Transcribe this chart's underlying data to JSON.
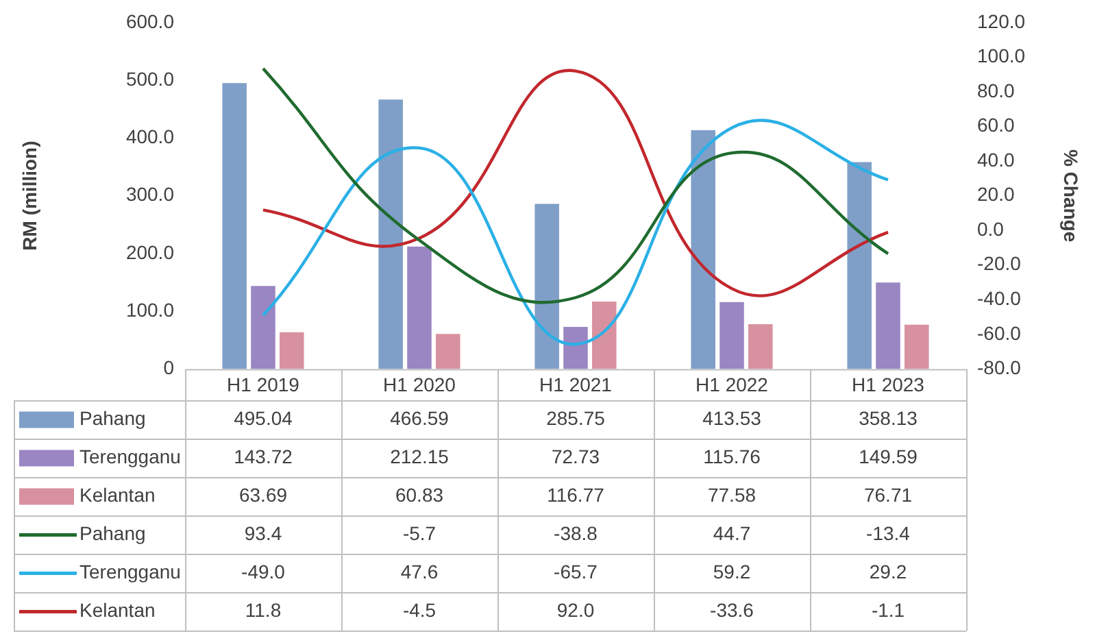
{
  "chart_data": {
    "type": "bar",
    "ylabel": "RM (million)",
    "y2label": "% Change",
    "categories": [
      "H1 2019",
      "H1 2020",
      "H1 2021",
      "H1 2022",
      "H1 2023"
    ],
    "ylim": [
      0,
      600
    ],
    "yticks": [
      {
        "value": 0,
        "label": "0"
      },
      {
        "value": 100,
        "label": "100.0"
      },
      {
        "value": 200,
        "label": "200.0"
      },
      {
        "value": 300,
        "label": "300.0"
      },
      {
        "value": 400,
        "label": "400.0"
      },
      {
        "value": 500,
        "label": "500.0"
      },
      {
        "value": 600,
        "label": "600.0"
      }
    ],
    "y2lim": [
      -80,
      120
    ],
    "y2ticks": [
      {
        "value": -80,
        "label": "-80.0"
      },
      {
        "value": -60,
        "label": "-60.0"
      },
      {
        "value": -40,
        "label": "-40.0"
      },
      {
        "value": -20,
        "label": "-20.0"
      },
      {
        "value": 0,
        "label": "0.0"
      },
      {
        "value": 20,
        "label": "20.0"
      },
      {
        "value": 40,
        "label": "40.0"
      },
      {
        "value": 60,
        "label": "60.0"
      },
      {
        "value": 80,
        "label": "80.0"
      },
      {
        "value": 100,
        "label": "100.0"
      },
      {
        "value": 120,
        "label": "120.0"
      }
    ],
    "grid": false,
    "legend": "bottom",
    "series": [
      {
        "name": "Pahang",
        "color": "#7f9fc8",
        "values": [
          495.04,
          466.59,
          285.75,
          413.53,
          358.13
        ],
        "value_labels": [
          "495.04",
          "466.59",
          "285.75",
          "413.53",
          "358.13"
        ]
      },
      {
        "name": "Terengganu",
        "color": "#9a86c3",
        "values": [
          143.72,
          212.15,
          72.73,
          115.76,
          149.59
        ],
        "value_labels": [
          "143.72",
          "212.15",
          "72.73",
          "115.76",
          "149.59"
        ]
      },
      {
        "name": "Kelantan",
        "color": "#d8919e",
        "values": [
          63.69,
          60.83,
          116.77,
          77.58,
          76.71
        ],
        "value_labels": [
          "63.69",
          "60.83",
          "116.77",
          "77.58",
          "76.71"
        ]
      },
      {
        "name": "Pahang",
        "type": "line",
        "axis": "y2",
        "color": "#1f6b2f",
        "values": [
          93.4,
          -5.7,
          -38.8,
          44.7,
          -13.4
        ],
        "value_labels": [
          "93.4",
          "-5.7",
          "-38.8",
          "44.7",
          "-13.4"
        ]
      },
      {
        "name": "Terengganu",
        "type": "line",
        "axis": "y2",
        "color": "#2bb0e6",
        "values": [
          -49.0,
          47.6,
          -65.7,
          59.2,
          29.2
        ],
        "value_labels": [
          "-49.0",
          "47.6",
          "-65.7",
          "59.2",
          "29.2"
        ]
      },
      {
        "name": "Kelantan",
        "type": "line",
        "axis": "y2",
        "color": "#c2272d",
        "values": [
          11.8,
          -4.5,
          92.0,
          -33.6,
          -1.1
        ],
        "value_labels": [
          "11.8",
          "-4.5",
          "92.0",
          "-33.6",
          "-1.1"
        ]
      }
    ]
  }
}
